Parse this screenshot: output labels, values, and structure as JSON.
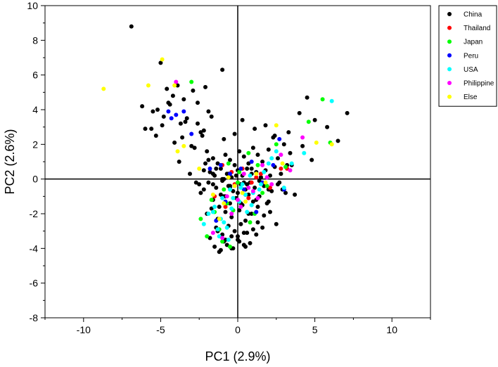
{
  "chart_data": {
    "type": "scatter",
    "xlabel": "PC1 (2.9%)",
    "ylabel": "PC2 (2.6%)",
    "xlim": [
      -12.5,
      12.5
    ],
    "ylim": [
      -8,
      10
    ],
    "x_ticks": [
      -10,
      -5,
      0,
      5,
      10
    ],
    "y_ticks": [
      -8,
      -6,
      -4,
      -2,
      0,
      2,
      4,
      6,
      8,
      10
    ],
    "x_tick_labels": [
      "-10",
      "-5",
      "0",
      "5",
      "10"
    ],
    "y_tick_labels": [
      "-8",
      "-6",
      "-4",
      "-2",
      "0",
      "2",
      "4",
      "6",
      "8",
      "10"
    ],
    "reference_lines": {
      "x": 0,
      "y": 0
    },
    "grid": false,
    "legend_position": "top-right outside",
    "series": [
      {
        "name": "China",
        "color": "#000000",
        "x": [
          -6.9,
          -1.0,
          -5.0,
          -4.6,
          -4.2,
          -4.4,
          -3.9,
          -4.8,
          -5.2,
          -3.5,
          -3.7,
          -2.9,
          -2.6,
          -2.1,
          -1.9,
          -2.3,
          -5.6,
          -4.1,
          -3.3,
          -3.0,
          -2.4,
          -2.0,
          -1.6,
          -1.3,
          -0.8,
          -0.5,
          -0.2,
          0.1,
          0.4,
          0.7,
          1.0,
          1.3,
          1.6,
          2.0,
          2.3,
          2.6,
          3.0,
          3.4,
          -1.8,
          -1.5,
          -1.1,
          -0.7,
          -0.4,
          0.0,
          0.3,
          0.6,
          0.9,
          1.2,
          1.5,
          1.8,
          2.1,
          2.4,
          2.8,
          3.2,
          -2.5,
          -2.2,
          -1.9,
          -1.4,
          -1.0,
          -0.6,
          -0.3,
          0.2,
          0.5,
          0.8,
          1.1,
          1.4,
          1.7,
          2.2,
          2.6,
          3.1,
          -1.6,
          -1.2,
          -0.9,
          -0.5,
          -0.1,
          0.3,
          0.7,
          1.0,
          1.4,
          1.9,
          -2.0,
          -1.7,
          -1.3,
          -0.8,
          -0.4,
          0.1,
          0.5,
          0.9,
          1.3,
          1.7,
          2.1,
          2.5,
          -1.4,
          -1.0,
          -0.6,
          -0.2,
          0.2,
          0.6,
          1.0,
          -1.8,
          -1.3,
          -0.9,
          -0.4,
          0.0,
          0.4,
          0.8,
          1.2,
          1.6,
          -1.5,
          -1.1,
          -0.7,
          -0.3,
          0.1,
          0.5,
          -1.2,
          -0.8,
          -0.4,
          0.0,
          0.4,
          -2.6,
          -2.2,
          -1.7,
          -0.9,
          -0.2,
          0.3,
          1.1,
          1.8,
          2.4,
          3.3,
          4.0,
          4.5,
          5.0,
          5.8,
          6.5,
          7.1,
          3.5,
          4.2,
          2.9,
          2.0,
          3.7,
          4.8,
          -3.8,
          -3.1,
          -2.7,
          -2.4,
          -3.6,
          -4.9,
          -5.5,
          -6.2,
          -6.0,
          -5.3,
          -4.5,
          -3.4,
          -2.8,
          -2.2,
          -1.6,
          -1.1,
          -0.6,
          -1.9,
          -1.4,
          -0.9,
          -0.5,
          0.0,
          0.6,
          1.2,
          -2.1,
          -1.6,
          -1.0,
          -0.5,
          -0.1,
          0.4,
          0.9,
          1.5,
          2.0,
          2.7,
          -0.8,
          -0.3,
          0.2,
          0.7,
          1.3
        ],
        "y": [
          8.8,
          6.3,
          6.7,
          5.2,
          4.8,
          4.3,
          5.4,
          3.6,
          4.0,
          4.6,
          3.2,
          5.1,
          4.4,
          5.3,
          3.9,
          2.5,
          2.9,
          2.1,
          3.5,
          1.9,
          2.7,
          1.6,
          1.2,
          0.9,
          1.4,
          1.1,
          0.8,
          1.6,
          1.3,
          0.9,
          1.8,
          1.4,
          1.0,
          1.7,
          2.4,
          1.2,
          2.0,
          1.5,
          0.4,
          0.2,
          0.6,
          0.3,
          0.1,
          0.5,
          0.2,
          0.6,
          0.3,
          0.4,
          0.1,
          0.5,
          0.2,
          0.7,
          0.3,
          0.8,
          -0.3,
          -0.6,
          -0.2,
          -0.5,
          -0.1,
          -0.4,
          -0.7,
          -0.3,
          -0.6,
          -0.2,
          -0.5,
          -0.1,
          -0.4,
          -0.7,
          -0.3,
          -0.8,
          -1.2,
          -1.6,
          -1.0,
          -1.4,
          -1.1,
          -1.5,
          -0.9,
          -1.3,
          -1.0,
          -1.4,
          -2.0,
          -1.7,
          -2.3,
          -1.9,
          -2.2,
          -1.8,
          -2.4,
          -2.0,
          -2.5,
          -2.1,
          -1.9,
          -2.6,
          -2.8,
          -3.2,
          -2.7,
          -3.0,
          -2.6,
          -3.1,
          -2.9,
          -3.4,
          -3.0,
          -3.6,
          -3.3,
          -3.5,
          -3.1,
          -3.7,
          -3.2,
          -2.8,
          -3.9,
          -4.1,
          -3.8,
          -4.0,
          -3.6,
          -3.9,
          -4.2,
          -3.5,
          -4.0,
          -3.3,
          -3.8,
          3.2,
          2.8,
          3.6,
          2.3,
          2.6,
          3.4,
          2.9,
          3.1,
          2.5,
          2.7,
          3.8,
          4.7,
          3.4,
          3.0,
          2.2,
          3.8,
          0.8,
          1.9,
          -0.6,
          -1.3,
          -0.9,
          1.1,
          1.0,
          0.3,
          -0.2,
          -0.8,
          2.4,
          3.1,
          3.9,
          4.2,
          2.9,
          2.5,
          4.4,
          3.3,
          1.8,
          0.5,
          -0.3,
          -0.9,
          0.3,
          1.1,
          0.6,
          0.0,
          -0.5,
          -0.8,
          -0.3,
          -1.2,
          0.9,
          0.3,
          0.0,
          -0.4,
          0.2,
          -0.2,
          0.6,
          0.1,
          -0.6,
          -0.2,
          -1.0,
          -1.8,
          -1.4,
          -2.0,
          -1.6
        ]
      },
      {
        "name": "Thailand",
        "color": "#ff0000",
        "x": [
          -1.0,
          -0.4,
          0.3,
          0.9,
          1.5,
          2.1,
          -1.5,
          -0.8,
          0.5,
          1.2,
          -0.2,
          0.7,
          2.8,
          3.2
        ],
        "y": [
          0.8,
          0.4,
          0.6,
          -0.2,
          0.3,
          -0.5,
          -1.0,
          -1.6,
          -0.9,
          0.1,
          -0.3,
          -1.1,
          0.6,
          0.6
        ]
      },
      {
        "name": "Japan",
        "color": "#00ff00",
        "x": [
          -3.0,
          -2.0,
          -1.2,
          -0.6,
          0.1,
          0.7,
          1.3,
          1.9,
          2.5,
          3.1,
          4.6,
          5.5,
          6.0,
          -1.7,
          -0.9,
          -0.3,
          0.5,
          1.1,
          -2.4,
          -1.5,
          -0.7,
          0.0,
          0.8,
          1.6,
          -1.0,
          -0.5
        ],
        "y": [
          5.6,
          -3.3,
          -2.9,
          0.9,
          0.4,
          1.5,
          0.8,
          -0.4,
          2.0,
          0.7,
          3.3,
          4.6,
          2.1,
          -1.2,
          -0.6,
          -1.8,
          -0.9,
          -2.0,
          -2.3,
          -1.9,
          -1.4,
          -0.2,
          -2.5,
          -0.8,
          -3.6,
          -3.9
        ]
      },
      {
        "name": "Peru",
        "color": "#0000ff",
        "x": [
          -4.5,
          -4.3,
          -4.0,
          -3.5,
          -3.0,
          -1.8,
          -1.1,
          -0.5,
          0.2,
          0.9,
          1.6,
          2.3,
          3.0,
          2.7,
          -1.4,
          -0.8,
          0.4,
          1.2,
          -0.2
        ],
        "y": [
          3.9,
          3.5,
          3.7,
          3.9,
          2.6,
          0.6,
          0.8,
          0.3,
          0.6,
          1.0,
          -0.2,
          0.8,
          -0.6,
          2.3,
          -2.4,
          -1.3,
          -0.6,
          -1.9,
          -0.4
        ]
      },
      {
        "name": "USA",
        "color": "#00ffff",
        "x": [
          -1.5,
          -1.1,
          -0.7,
          -0.3,
          0.2,
          0.6,
          1.0,
          1.5,
          2.0,
          2.5,
          3.0,
          3.5,
          4.3,
          6.1,
          -1.9,
          -1.3,
          -0.9,
          -0.4,
          0.1,
          0.5,
          0.9,
          1.4,
          -2.2,
          -1.6,
          -1.0,
          -0.5,
          0.3,
          0.8,
          -1.2,
          -0.6,
          2.2,
          1.7
        ],
        "y": [
          -1.6,
          -2.3,
          -2.8,
          -1.1,
          -0.5,
          -1.9,
          -0.8,
          -0.3,
          0.9,
          1.6,
          -0.5,
          0.9,
          1.5,
          4.5,
          -2.0,
          -2.9,
          -2.5,
          -1.7,
          -1.3,
          -0.9,
          -1.5,
          -0.6,
          -2.6,
          -1.9,
          -1.1,
          -0.6,
          -0.3,
          0.2,
          -3.3,
          -3.5,
          1.2,
          0.4
        ]
      },
      {
        "name": "Philippine",
        "color": "#ff00ff",
        "x": [
          -4.0,
          -0.7,
          -0.2,
          0.4,
          1.0,
          1.6,
          2.2,
          2.8,
          3.4,
          4.2,
          -1.6,
          -1.0,
          0.0,
          0.7,
          1.3,
          1.9,
          -0.4,
          0.2
        ],
        "y": [
          5.6,
          -1.0,
          -0.4,
          0.3,
          -0.7,
          0.8,
          -0.3,
          1.4,
          0.5,
          2.4,
          -3.1,
          -3.4,
          -1.2,
          -0.5,
          -1.1,
          0.1,
          -2.0,
          -1.6
        ]
      },
      {
        "name": "Else",
        "color": "#ffff00",
        "x": [
          -8.7,
          -4.9,
          -5.8,
          -4.1,
          -3.9,
          -3.5,
          -2.5,
          -1.6,
          -0.9,
          -0.2,
          0.5,
          1.2,
          2.5,
          2.9,
          5.1,
          6.1,
          -1.2,
          0.3,
          1.8,
          -0.6
        ],
        "y": [
          5.2,
          6.9,
          5.4,
          5.4,
          1.6,
          1.9,
          0.6,
          -0.9,
          -1.4,
          -0.4,
          -1.3,
          0.3,
          3.1,
          0.9,
          2.1,
          2.0,
          -2.3,
          -0.8,
          -0.2,
          0.1
        ]
      }
    ]
  }
}
